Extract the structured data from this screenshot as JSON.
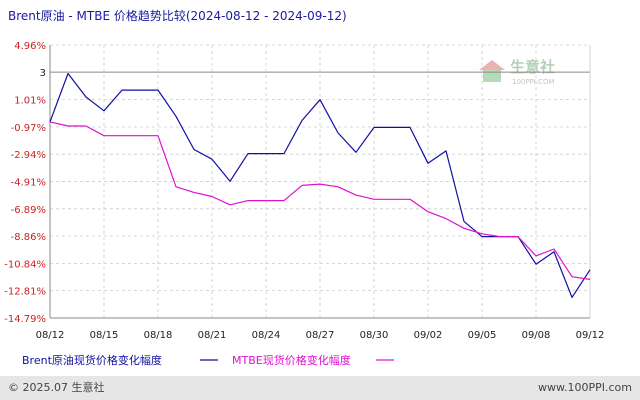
{
  "chart_data": {
    "type": "line",
    "title": "Brent原油 - MTBE 价格趋势比较(2024-08-12 - 2024-09-12)",
    "ytick_labels": [
      "4.96%",
      "3",
      "1.01%",
      "-0.97%",
      "-2.94%",
      "-4.91%",
      "-6.89%",
      "-8.86%",
      "-10.84%",
      "-12.81%",
      "-14.79%"
    ],
    "ytick_values": [
      4.96,
      3.0,
      1.01,
      -0.97,
      -2.94,
      -4.91,
      -6.89,
      -8.86,
      -10.84,
      -12.81,
      -14.79
    ],
    "ylim": [
      -14.79,
      4.96
    ],
    "reference_line": 3.0,
    "xtick_labels": [
      "08/12",
      "08/15",
      "08/18",
      "08/21",
      "08/24",
      "08/27",
      "08/30",
      "09/02",
      "09/05",
      "09/08",
      "09/12"
    ],
    "xtick_values": [
      0,
      3,
      6,
      9,
      12,
      15,
      18,
      21,
      24,
      27,
      30
    ],
    "x": [
      0,
      1,
      2,
      3,
      4,
      5,
      6,
      7,
      8,
      9,
      10,
      11,
      12,
      13,
      14,
      15,
      16,
      17,
      18,
      19,
      20,
      21,
      22,
      23,
      24,
      25,
      26,
      27,
      28,
      29,
      30
    ],
    "series": [
      {
        "name": "Brent原油现货价格变化幅度",
        "color": "#1010a0",
        "values": [
          -0.6,
          2.9,
          1.2,
          0.2,
          1.7,
          1.7,
          1.7,
          -0.2,
          -2.6,
          -3.3,
          -4.9,
          -2.9,
          -2.9,
          -2.9,
          -0.5,
          1.0,
          -1.4,
          -2.8,
          -1.0,
          -1.0,
          -1.0,
          -3.6,
          -2.7,
          -7.8,
          -8.9,
          -8.9,
          -8.9,
          -10.9,
          -10.0,
          -13.3,
          -11.3
        ]
      },
      {
        "name": "MTBE现货价格变化幅度",
        "color": "#e010d0",
        "values": [
          -0.6,
          -0.9,
          -0.9,
          -1.6,
          -1.6,
          -1.6,
          -1.6,
          -5.3,
          -5.7,
          -6.0,
          -6.6,
          -6.3,
          -6.3,
          -6.3,
          -5.2,
          -5.1,
          -5.3,
          -5.9,
          -6.2,
          -6.2,
          -6.2,
          -7.1,
          -7.6,
          -8.3,
          -8.7,
          -8.9,
          -8.9,
          -10.3,
          -9.8,
          -11.8,
          -12.0
        ]
      }
    ],
    "grid": true,
    "legend_position": "bottom-left"
  },
  "watermark": {
    "name": "生意社",
    "url": "100PPI.COM"
  },
  "footer": {
    "copyright": "© 2025.07 生意社",
    "site": "www.100PPI.com"
  },
  "colors": {
    "positive_tick": "#cc2222",
    "negative_tick": "#cc2222",
    "neutral_tick": "#222222",
    "grid": "#cccccc",
    "footer_bg": "#e6e6e6"
  }
}
